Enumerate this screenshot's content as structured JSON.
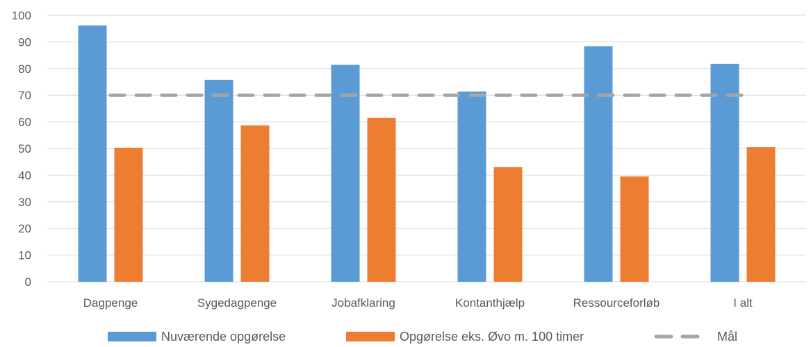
{
  "chart_data": {
    "type": "bar",
    "categories": [
      "Dagpenge",
      "Sygedagpenge",
      "Jobafklaring",
      "Kontanthjælp",
      "Ressourceforløb",
      "I alt"
    ],
    "series": [
      {
        "name": "Nuværende opgørelse",
        "type": "bar",
        "color": "#5B9BD5",
        "values": [
          96.2,
          75.8,
          81.4,
          71.4,
          88.4,
          81.8
        ]
      },
      {
        "name": "Opgørelse eks. Øvo m. 100 timer",
        "type": "bar",
        "color": "#ED7D31",
        "values": [
          50.3,
          58.7,
          61.5,
          43.0,
          39.5,
          50.5
        ]
      },
      {
        "name": "Mål",
        "type": "line",
        "style": "dashed",
        "color": "#A5A5A5",
        "values": [
          70,
          70,
          70,
          70,
          70,
          70
        ]
      }
    ],
    "y_ticks": [
      "0",
      "10",
      "20",
      "30",
      "40",
      "50",
      "60",
      "70",
      "80",
      "90",
      "100"
    ],
    "ylim": [
      0,
      100
    ],
    "grid": true,
    "legend_position": "bottom"
  }
}
